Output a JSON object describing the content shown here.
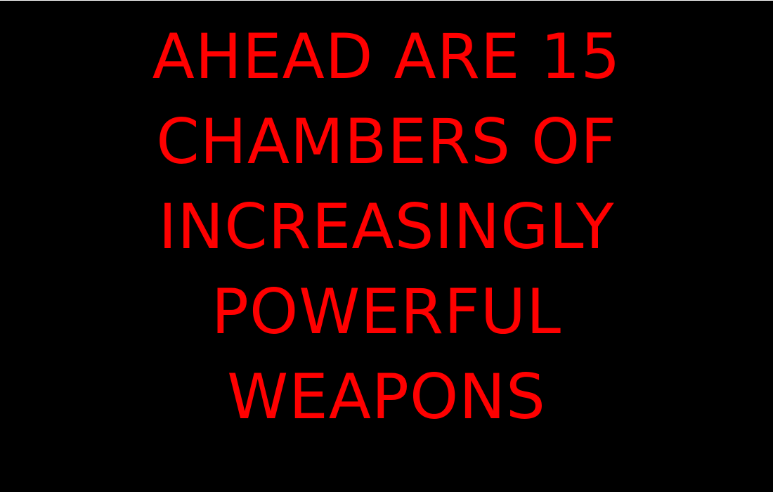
{
  "screen": {
    "background_color": "#000000",
    "text_color": "#ff0000",
    "message_lines": [
      "AHEAD ARE 15",
      "CHAMBERS OF",
      "INCREASINGLY",
      "POWERFUL",
      "WEAPONS"
    ]
  }
}
